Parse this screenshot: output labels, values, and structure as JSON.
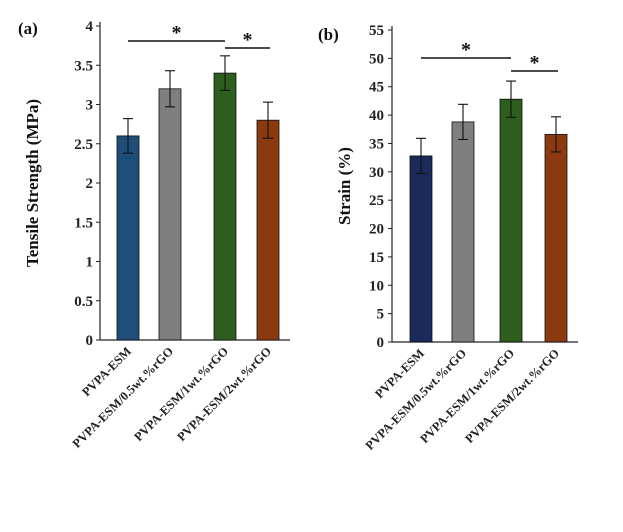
{
  "chart_data": [
    {
      "type": "bar",
      "panel_label": "(a)",
      "ylabel": "Tensile Strength (MPa)",
      "xlabel": "",
      "ylim": [
        0,
        4
      ],
      "yticks": [
        "0",
        "0.5",
        "1",
        "1.5",
        "2",
        "2.5",
        "3",
        "3.5",
        "4"
      ],
      "categories": [
        "PVPA-ESM",
        "PVPA-ESM/0.5wt.%rGO",
        "PVPA-ESM/1wt.%rGO",
        "PVPA-ESM/2wt.%rGO"
      ],
      "values": [
        2.6,
        3.2,
        3.4,
        2.8
      ],
      "errors": [
        0.22,
        0.23,
        0.22,
        0.23
      ],
      "colors": [
        "#1f4e79",
        "#7f7f7f",
        "#2e5e1e",
        "#8b3a0f"
      ],
      "grid": false,
      "significance": [
        {
          "from": 0,
          "to": 2,
          "label": "*"
        },
        {
          "from": 2,
          "to": 3,
          "label": "*"
        }
      ]
    },
    {
      "type": "bar",
      "panel_label": "(b)",
      "ylabel": "Strain (%)",
      "xlabel": "",
      "ylim": [
        0,
        55
      ],
      "yticks": [
        "0",
        "5",
        "10",
        "15",
        "20",
        "25",
        "30",
        "35",
        "40",
        "45",
        "50",
        "55"
      ],
      "categories": [
        "PVPA-ESM",
        "PVPA-ESM/0.5wt.%rGO",
        "PVPA-ESM/1wt.%rGO",
        "PVPA-ESM/2wt.%rGO"
      ],
      "values": [
        32.8,
        38.8,
        42.8,
        36.6
      ],
      "errors": [
        3.1,
        3.1,
        3.2,
        3.1
      ],
      "colors": [
        "#1a2a5a",
        "#7f7f7f",
        "#2e5e1e",
        "#8b3a0f"
      ],
      "grid": false,
      "significance": [
        {
          "from": 0,
          "to": 2,
          "label": "*"
        },
        {
          "from": 2,
          "to": 3,
          "label": "*"
        }
      ]
    }
  ]
}
